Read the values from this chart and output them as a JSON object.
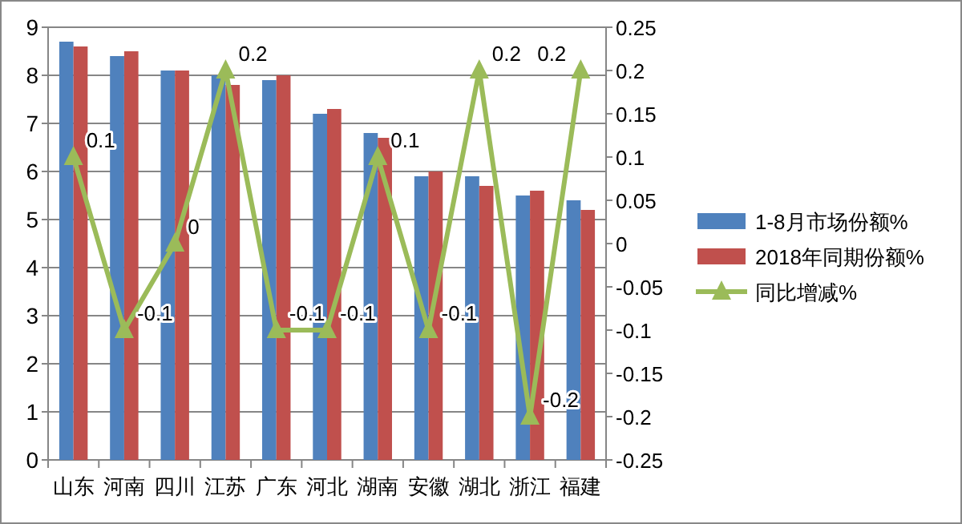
{
  "chart_data": {
    "type": "bar",
    "categories": [
      "山东",
      "河南",
      "四川",
      "江苏",
      "广东",
      "河北",
      "湖南",
      "安徽",
      "湖北",
      "浙江",
      "福建"
    ],
    "series": [
      {
        "name": "1-8月市场份额%",
        "color": "#4f81bd",
        "values": [
          8.7,
          8.4,
          8.1,
          8.0,
          7.9,
          7.2,
          6.8,
          5.9,
          5.9,
          5.5,
          5.4
        ]
      },
      {
        "name": "2018年同期份额%",
        "color": "#c0504d",
        "values": [
          8.6,
          8.5,
          8.1,
          7.8,
          8.0,
          7.3,
          6.7,
          6.0,
          5.7,
          5.6,
          5.2
        ]
      },
      {
        "name": "同比增减%",
        "color": "#9bbb59",
        "type": "line",
        "axis": "y2",
        "marker": "triangle",
        "values": [
          0.1,
          -0.1,
          0,
          0.2,
          -0.1,
          -0.1,
          0.1,
          -0.1,
          0.2,
          -0.2,
          0.2
        ],
        "value_labels": [
          "0.1",
          "-0.1",
          "0",
          "0.2",
          "-0.1",
          "-0.1",
          "0.1",
          "-0.1",
          "0.2",
          "-0.2",
          "0.2"
        ]
      }
    ],
    "ylim": [
      0,
      9
    ],
    "yticks": [
      0,
      1,
      2,
      3,
      4,
      5,
      6,
      7,
      8,
      9
    ],
    "y2lim": [
      -0.25,
      0.25
    ],
    "y2ticks": [
      -0.25,
      -0.2,
      -0.15,
      -0.1,
      -0.05,
      0,
      0.05,
      0.1,
      0.15,
      0.2,
      0.25
    ],
    "grid": "y",
    "legend": "right"
  }
}
